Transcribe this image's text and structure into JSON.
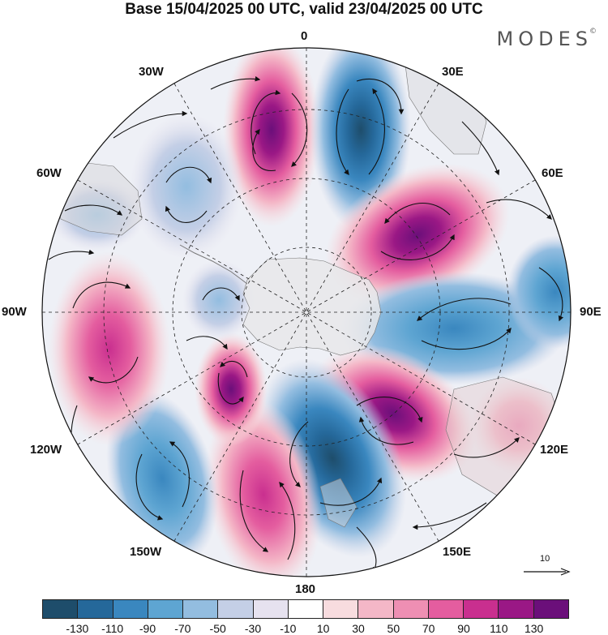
{
  "title": "Base 15/04/2025 00 UTC, valid 23/04/2025 00 UTC",
  "brand": "MODES",
  "brand_mark": "©",
  "map": {
    "projection": "south-polar-stereographic",
    "longitude_labels": {
      "lon_0": "0",
      "lon_30e": "30E",
      "lon_60e": "60E",
      "lon_90e": "90E",
      "lon_120e": "120E",
      "lon_150e": "150E",
      "lon_180": "180",
      "lon_150w": "150W",
      "lon_120w": "120W",
      "lon_90w": "90W",
      "lon_60w": "60W",
      "lon_30w": "30W"
    },
    "anomaly_centers": [
      {
        "lon": "5W",
        "lat": "55S",
        "value": 130
      },
      {
        "lon": "15E",
        "lat": "55S",
        "value": -130
      },
      {
        "lon": "45E",
        "lat": "60S",
        "value": 110
      },
      {
        "lon": "95E",
        "lat": "55S",
        "value": -70
      },
      {
        "lon": "125E",
        "lat": "55S",
        "value": 110
      },
      {
        "lon": "165E",
        "lat": "55S",
        "value": -90
      },
      {
        "lon": "170W",
        "lat": "55S",
        "value": 90
      },
      {
        "lon": "150W",
        "lat": "70S",
        "value": 110
      },
      {
        "lon": "130W",
        "lat": "50S",
        "value": -70
      },
      {
        "lon": "95W",
        "lat": "50S",
        "value": 50
      },
      {
        "lon": "55W",
        "lat": "50S",
        "value": -40
      },
      {
        "lon": "30W",
        "lat": "55S",
        "value": -40
      }
    ]
  },
  "reference_vector": "10",
  "colorbar": {
    "colors": [
      "#1e4d6b",
      "#25689a",
      "#3a87bf",
      "#5ea5d2",
      "#93bde0",
      "#c4cfe6",
      "#e6e2ef",
      "#ffffff",
      "#f8dcdf",
      "#f4b7c7",
      "#ee8fb3",
      "#e45d9f",
      "#c92f8f",
      "#9a1885",
      "#6b0f7a"
    ],
    "labels": [
      "-130",
      "-110",
      "-90",
      "-70",
      "-50",
      "-30",
      "-10",
      "10",
      "30",
      "50",
      "70",
      "90",
      "110",
      "130"
    ]
  }
}
